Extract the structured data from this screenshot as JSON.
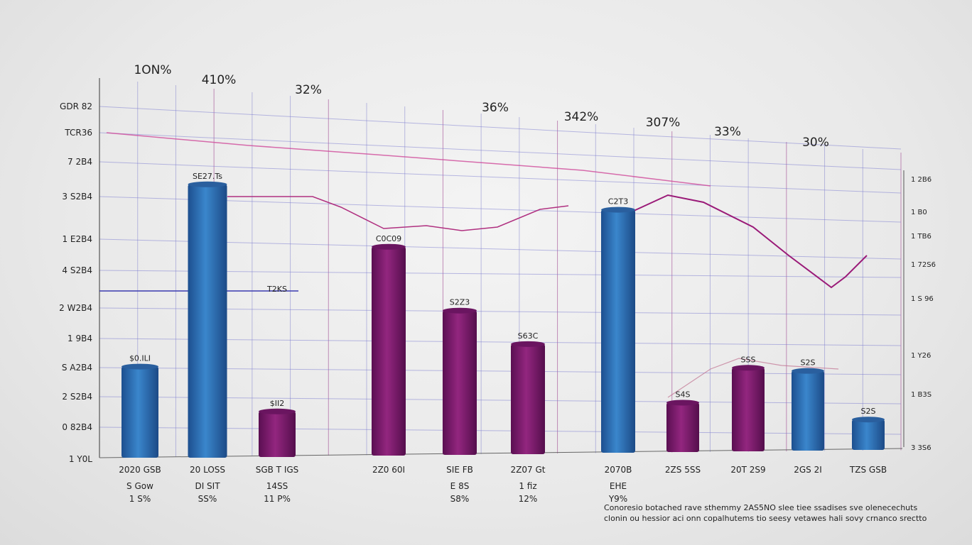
{
  "chart_data": {
    "type": "bar",
    "title": "",
    "xlabel": "",
    "ylabel": "",
    "ylim": [
      0,
      100
    ],
    "grid": true,
    "categories": [
      "2020 GSB",
      "20 LOSS",
      "SGB T IGS",
      "2Z0 60I",
      "SIE FB",
      "2Z07 Gt",
      "2070B",
      "2ZS 5SS",
      "20T 2S9",
      "2GS 2I",
      "TZS GSB"
    ],
    "sublabels": [
      [
        "S Gow",
        "1 S%"
      ],
      [
        "DI SIT",
        "SS%"
      ],
      [
        "14SS",
        "11 P%"
      ],
      [],
      [
        "E 8S",
        "S8%"
      ],
      [
        "1 fiz",
        "12%"
      ],
      [
        "EHE",
        "Y9%"
      ],
      [],
      [],
      [],
      []
    ],
    "series": [
      {
        "name": "bars",
        "values": [
          24,
          72,
          12,
          55,
          38,
          29,
          64,
          13,
          22,
          21,
          8
        ],
        "colors": [
          "#2d6db3",
          "#2f74bd",
          "#7c1a6c",
          "#7d1a6f",
          "#7e1b6f",
          "#7a1a6c",
          "#2c6fb8",
          "#7c1a6c",
          "#7e1b6f",
          "#2e64b0",
          "#2d62aa"
        ]
      }
    ],
    "bar_labels": [
      "$0.ILI",
      "SE27.Ts",
      "$II2",
      "C0C09",
      "S2Z3",
      "S63C",
      "C2T3",
      "S4S",
      "SSS",
      "S2S",
      "S2S"
    ],
    "top_labels": [
      "1ON%",
      "410%",
      "32%",
      "36%",
      "342%",
      "307%",
      "33%",
      "30%"
    ],
    "yticks_left": [
      "GDR 82",
      "TCR36",
      "7 2B4",
      "3 S2B4",
      "1 E2B4",
      "4 S2B4",
      "2 W2B4",
      "1 9B4",
      "S A2B4",
      "2 S2B4",
      "0 82B4",
      "1 Y0L"
    ],
    "yticks_right": [
      "1 2B6",
      "1 B0",
      "1 TB6",
      "1 72S6",
      "1 S 96",
      "1 Y26",
      "1 B3S",
      "3 3S6"
    ],
    "annotations": [
      "T2KS"
    ],
    "caption": [
      "Conoresio botached rave sthemmy 2AS5NO slee tiee ssadises sve olenecechuts",
      "clonin ou hessior aci onn copalhutems tio seesy vetawes hali sovy crnanco srectto"
    ]
  }
}
